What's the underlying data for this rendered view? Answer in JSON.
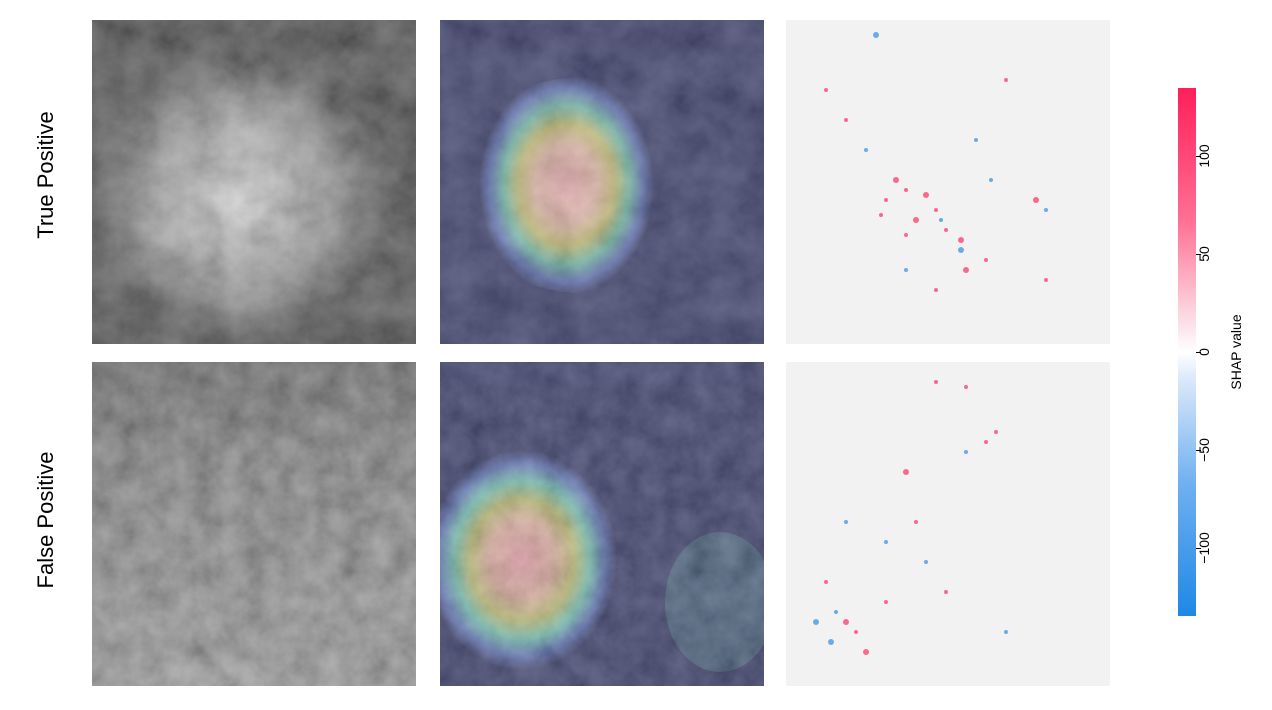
{
  "rows": [
    {
      "label": "True Positive"
    },
    {
      "label": "False Positive"
    }
  ],
  "colorbar": {
    "label": "SHAP value",
    "ticks": [
      {
        "value": 100,
        "text": "100"
      },
      {
        "value": 50,
        "text": "50"
      },
      {
        "value": 0,
        "text": "0"
      },
      {
        "value": -50,
        "text": "−50"
      },
      {
        "value": -100,
        "text": "−100"
      }
    ],
    "range": [
      -135,
      135
    ],
    "colors": {
      "positive": "#ff1f5a",
      "zero": "#ffffff",
      "negative": "#1e88e5"
    }
  },
  "panels": [
    {
      "kind": "mammogram-patch"
    },
    {
      "kind": "saliency-heatmap-overlay"
    },
    {
      "kind": "shap-attribution-map"
    }
  ]
}
